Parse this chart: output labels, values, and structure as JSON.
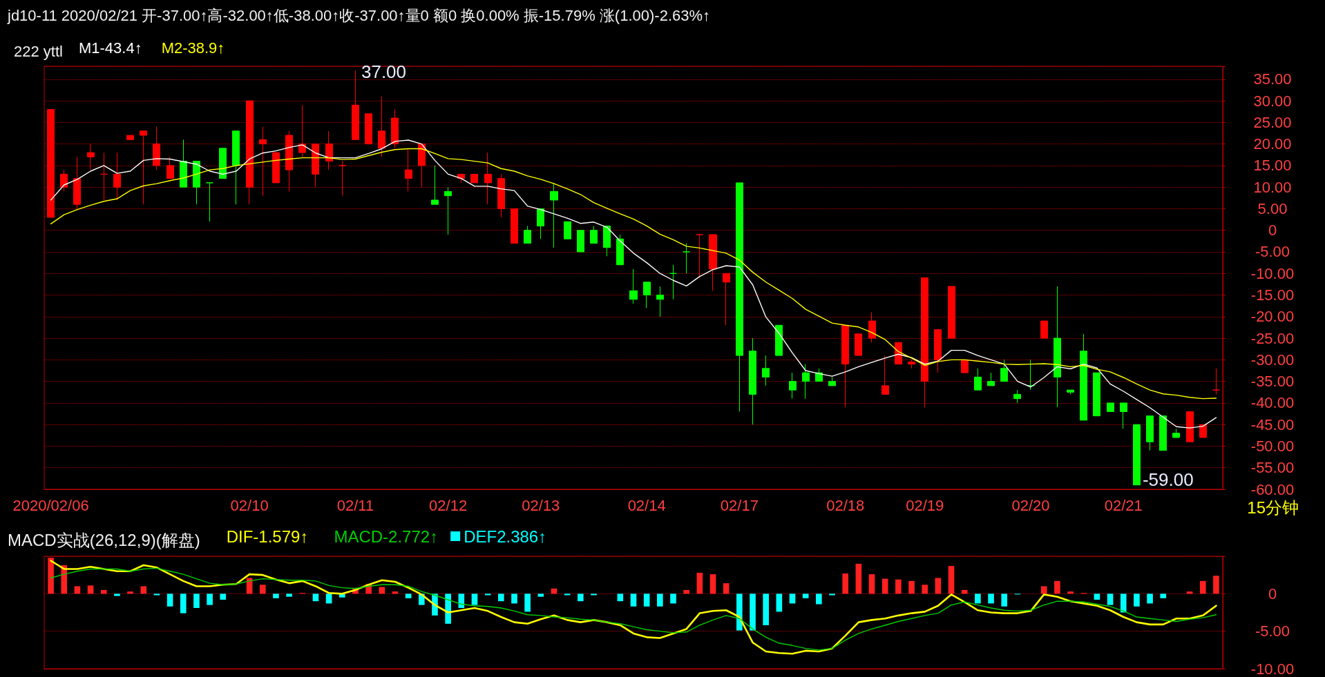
{
  "chart_data": [
    {
      "type": "candlestick",
      "title": "jd10-11 2020/02/21 开-37.00↑高-32.00↑低-38.00↑收-37.00↑量0 额0 换0.00% 振-15.79% 涨(1.00)-2.63%↑",
      "subtitle": "222 yttl",
      "categories": [
        "2020/02/06",
        null,
        null,
        null,
        null,
        null,
        null,
        null,
        null,
        null,
        null,
        null,
        null,
        null,
        null,
        "02/10",
        null,
        null,
        null,
        null,
        null,
        null,
        null,
        "02/11",
        null,
        null,
        null,
        null,
        null,
        null,
        "02/12",
        null,
        null,
        null,
        null,
        null,
        null,
        "02/13",
        null,
        null,
        null,
        null,
        null,
        null,
        null,
        "02/14",
        null,
        null,
        null,
        null,
        null,
        null,
        "02/17",
        null,
        null,
        null,
        null,
        null,
        null,
        null,
        "02/18",
        null,
        null,
        null,
        null,
        null,
        "02/19",
        null,
        null,
        null,
        null,
        null,
        null,
        null,
        "02/20",
        null,
        null,
        null,
        null,
        null,
        null,
        "02/21",
        null,
        null,
        null,
        null,
        null,
        null,
        null
      ],
      "ohlc": [
        [
          3,
          28,
          3,
          28
        ],
        [
          10,
          14,
          9,
          13
        ],
        [
          6,
          17,
          5,
          12
        ],
        [
          17,
          20,
          14,
          18
        ],
        [
          13,
          18,
          7,
          13
        ],
        [
          10,
          18,
          7,
          13
        ],
        [
          21,
          22,
          21,
          22
        ],
        [
          22,
          23,
          6,
          23
        ],
        [
          15,
          24,
          14,
          20
        ],
        [
          12,
          17,
          12,
          15
        ],
        [
          16,
          21,
          10,
          10
        ],
        [
          16,
          16,
          6,
          10
        ],
        [
          11,
          11,
          2,
          11
        ],
        [
          19,
          19,
          12,
          12
        ],
        [
          23,
          23,
          6,
          15
        ],
        [
          10,
          30,
          6,
          30
        ],
        [
          20,
          24,
          8,
          21
        ],
        [
          11,
          18,
          11,
          18
        ],
        [
          14,
          23,
          9,
          22
        ],
        [
          18,
          29,
          17,
          20
        ],
        [
          13,
          20,
          10,
          20
        ],
        [
          16,
          23,
          14,
          20
        ],
        [
          15,
          16,
          8,
          15
        ],
        [
          21,
          37,
          21,
          29
        ],
        [
          20,
          27,
          20,
          27
        ],
        [
          19,
          31,
          17,
          23
        ],
        [
          20,
          28,
          19,
          26
        ],
        [
          12,
          19,
          9,
          14
        ],
        [
          15,
          20,
          10,
          20
        ],
        [
          7,
          15,
          6,
          6
        ],
        [
          9,
          10,
          -1,
          8
        ],
        [
          12,
          13,
          11,
          13
        ],
        [
          11,
          13,
          11,
          13
        ],
        [
          11,
          18,
          6,
          13
        ],
        [
          5,
          13,
          3,
          12
        ],
        [
          -3,
          5,
          -3,
          5
        ],
        [
          0,
          1,
          -3,
          -3
        ],
        [
          5,
          5,
          -2,
          1
        ],
        [
          9,
          11,
          -4,
          7
        ],
        [
          2,
          2,
          -2,
          -2
        ],
        [
          0,
          0,
          -5,
          -5
        ],
        [
          0,
          1,
          -3,
          -3
        ],
        [
          1,
          1,
          -6,
          -4
        ],
        [
          -2,
          -1,
          -8,
          -8
        ],
        [
          -14,
          -9,
          -17,
          -16
        ],
        [
          -12,
          -12,
          -18,
          -15
        ],
        [
          -15,
          -13,
          -20,
          -16
        ],
        [
          -10,
          -8,
          -16,
          -10
        ],
        [
          -5,
          -3,
          -10,
          -5
        ],
        [
          -1,
          -1,
          -11,
          -1
        ],
        [
          -9,
          -1,
          -14,
          -1
        ],
        [
          -12,
          -10,
          -22,
          -10
        ],
        [
          11,
          11,
          -42,
          -29
        ],
        [
          -28,
          -25,
          -45,
          -38
        ],
        [
          -32,
          -29,
          -36,
          -34
        ],
        [
          -22,
          -22,
          -29,
          -29
        ],
        [
          -35,
          -33,
          -39,
          -37
        ],
        [
          -33,
          -31,
          -39,
          -35
        ],
        [
          -33,
          -32,
          -35,
          -35
        ],
        [
          -35,
          -34,
          -36,
          -36
        ],
        [
          -31,
          -22,
          -41,
          -22
        ],
        [
          -29,
          -24,
          -29,
          -24
        ],
        [
          -25,
          -19,
          -26,
          -21
        ],
        [
          -38,
          -29,
          -38,
          -36
        ],
        [
          -31,
          -26,
          -31,
          -26
        ],
        [
          -31,
          -30,
          -32,
          -30.5
        ],
        [
          -35,
          -11,
          -41,
          -11
        ],
        [
          -30,
          -23,
          -33,
          -23
        ],
        [
          -25,
          -13,
          -25,
          -13
        ],
        [
          -33,
          -30,
          -33,
          -30
        ],
        [
          -34,
          -32,
          -37,
          -37
        ],
        [
          -35,
          -33,
          -36,
          -36
        ],
        [
          -32,
          -30,
          -35,
          -35
        ],
        [
          -38,
          -37,
          -40,
          -39
        ],
        [
          -36,
          -30,
          -37,
          -36
        ],
        [
          -25,
          -21,
          -25,
          -21
        ],
        [
          -25,
          -13,
          -41,
          -34
        ],
        [
          -37.5,
          -37,
          -38,
          -37
        ],
        [
          -28,
          -24,
          -44,
          -44
        ],
        [
          -33,
          -33,
          -43,
          -43
        ],
        [
          -40,
          -40,
          -42,
          -42
        ],
        [
          -40,
          -40,
          -46,
          -42
        ],
        [
          -45,
          -45,
          -59,
          -59
        ],
        [
          -43,
          -43,
          -51,
          -49
        ],
        [
          -43,
          -43,
          -51,
          -51
        ],
        [
          -47,
          -46,
          -48,
          -48
        ],
        [
          -49,
          -42,
          -49,
          -42
        ],
        [
          -48,
          -45,
          -48,
          -45
        ],
        [
          -37,
          -32,
          -38,
          -37
        ]
      ],
      "colors": [
        "#ff0000",
        "#ff0000",
        "#ff0000",
        "#ff0000",
        "#ff0000",
        "#ff0000",
        "#ff0000",
        "#ff0000",
        "#ff0000",
        "#ff0000",
        "#00ff00",
        "#00ff00",
        "#00ff00",
        "#00ff00",
        "#00ff00",
        "#ff0000",
        "#ff0000",
        "#ff0000",
        "#ff0000",
        "#ff0000",
        "#ff0000",
        "#ff0000",
        "#ff0000",
        "#ff0000",
        "#ff0000",
        "#ff0000",
        "#ff0000",
        "#ff0000",
        "#ff0000",
        "#00ff00",
        "#00ff00",
        "#ff0000",
        "#ff0000",
        "#ff0000",
        "#ff0000",
        "#ff0000",
        "#00ff00",
        "#00ff00",
        "#00ff00",
        "#00ff00",
        "#00ff00",
        "#00ff00",
        "#00ff00",
        "#00ff00",
        "#00ff00",
        "#00ff00",
        "#00ff00",
        "#00ff00",
        "#00ff00",
        "#ff0000",
        "#ff0000",
        "#ff0000",
        "#00ff00",
        "#00ff00",
        "#00ff00",
        "#00ff00",
        "#00ff00",
        "#00ff00",
        "#00ff00",
        "#00ff00",
        "#ff0000",
        "#ff0000",
        "#ff0000",
        "#ff0000",
        "#ff0000",
        "#ff0000",
        "#ff0000",
        "#ff0000",
        "#ff0000",
        "#ff0000",
        "#00ff00",
        "#00ff00",
        "#00ff00",
        "#00ff00",
        "#00ff00",
        "#ff0000",
        "#00ff00",
        "#00ff00",
        "#00ff00",
        "#00ff00",
        "#00ff00",
        "#00ff00",
        "#00ff00",
        "#00ff00",
        "#00ff00",
        "#00ff00",
        "#ff0000",
        "#ff0000",
        "#ff0000"
      ],
      "series": [
        {
          "name": "M1-43.4↑",
          "type": "line",
          "color": "#ffffff",
          "values": [
            7,
            10.5,
            11.8,
            13.7,
            15,
            13.2,
            13.7,
            16.2,
            16.6,
            16.5,
            15.9,
            15.3,
            13.7,
            13,
            13.7,
            16.5,
            17.9,
            18.4,
            19.2,
            19.8,
            17.9,
            16.8,
            16.8,
            16.8,
            17.8,
            18.9,
            20.6,
            20.9,
            20,
            16.2,
            13,
            12,
            10.2,
            10.2,
            9.6,
            9.2,
            5.6,
            4.8,
            3.8,
            2.8,
            1.6,
            1.9,
            0.7,
            -2.5,
            -5.3,
            -7.5,
            -10,
            -11.6,
            -12.9,
            -10.7,
            -9.1,
            -8.2,
            -8.5,
            -12.6,
            -20.1,
            -23.9,
            -28.4,
            -32.5,
            -33.2,
            -33.8,
            -32.8,
            -31.6,
            -30.6,
            -29.6,
            -28.7,
            -29.5,
            -31,
            -30.3,
            -27.8,
            -27.8,
            -29,
            -30,
            -31,
            -35,
            -36.3,
            -34.1,
            -31.6,
            -32.1,
            -31,
            -31.9,
            -35.6,
            -37.3,
            -39.2,
            -41.1,
            -43.3,
            -45.5,
            -45.8,
            -45.4,
            -43.4
          ]
        },
        {
          "name": "M2-38.9↑",
          "type": "line",
          "color": "#ffff00",
          "values": [
            1.5,
            3.6,
            4.8,
            5.8,
            6.7,
            7.3,
            9.2,
            10.3,
            10.8,
            11.5,
            12.1,
            13,
            14,
            14.3,
            15,
            15.4,
            15.8,
            16.2,
            16.5,
            16.8,
            16.8,
            16.8,
            16.4,
            16.5,
            17.3,
            18.1,
            18.7,
            18.9,
            18.9,
            17.8,
            16.6,
            16.4,
            16,
            15.6,
            14.3,
            13.7,
            12.6,
            11.8,
            10.8,
            9.6,
            8.3,
            6.4,
            5.1,
            3.8,
            2.6,
            1,
            -0.9,
            -2.2,
            -3.7,
            -4.1,
            -4.7,
            -5.3,
            -6.9,
            -9.7,
            -12,
            -13.9,
            -15.8,
            -18.3,
            -19.9,
            -21.5,
            -22,
            -22.4,
            -23.7,
            -25.3,
            -28.1,
            -29.6,
            -31.3,
            -30.4,
            -30,
            -30,
            -30.3,
            -30.6,
            -31,
            -31.1,
            -31,
            -30.9,
            -31.1,
            -31.6,
            -31.3,
            -32.2,
            -32.8,
            -34.1,
            -35.6,
            -37,
            -37.9,
            -38.2,
            -38.7,
            -39,
            -38.9
          ]
        }
      ],
      "annotations": [
        "37.00",
        "-59.00",
        "15分钟"
      ],
      "ylim": [
        -60,
        38
      ],
      "yticks": [
        {
          "value": -60,
          "label": "-60.00"
        },
        {
          "value": -55,
          "label": "-55.00"
        },
        {
          "value": -50,
          "label": "-50.00"
        },
        {
          "value": -45,
          "label": "-45.00"
        },
        {
          "value": -40,
          "label": "-40.00"
        },
        {
          "value": -35,
          "label": "-35.00"
        },
        {
          "value": -30,
          "label": "-30.00"
        },
        {
          "value": -25,
          "label": "-25.00"
        },
        {
          "value": -20,
          "label": "-20.00"
        },
        {
          "value": -15,
          "label": "-15.00"
        },
        {
          "value": -10,
          "label": "-10.00"
        },
        {
          "value": -5,
          "label": "-5.00"
        },
        0,
        {
          "value": 5,
          "label": "5.00"
        },
        {
          "value": 10,
          "label": "10.00"
        },
        {
          "value": 15,
          "label": "15.00"
        },
        {
          "value": 20,
          "label": "20.00"
        },
        {
          "value": 25,
          "label": "25.00"
        },
        {
          "value": 30,
          "label": "30.00"
        },
        {
          "value": 35,
          "label": "35.00"
        }
      ],
      "grid": "y",
      "legend": "top left",
      "marker": "none",
      "line_style": "solid"
    },
    {
      "type": "bar",
      "title": "MACD实战(26,12,9)(解盘)",
      "categories": [
        null,
        null,
        null,
        null,
        null,
        null,
        null,
        null,
        null,
        null,
        null,
        null,
        null,
        null,
        null,
        null,
        null,
        null,
        null,
        null,
        null,
        null,
        null,
        null,
        null,
        null,
        null,
        null,
        null,
        null,
        null,
        null,
        null,
        null,
        null,
        null,
        null,
        null,
        null,
        null,
        null,
        null,
        null,
        null,
        null,
        null,
        null,
        null,
        null,
        null,
        null,
        null,
        null,
        null,
        null,
        null,
        null,
        null,
        null,
        null,
        null,
        null,
        null,
        null,
        null,
        null,
        null,
        null,
        null,
        null,
        null,
        null,
        null,
        null,
        null,
        null,
        null,
        null,
        null,
        null,
        null,
        null,
        null,
        null,
        null,
        null,
        null,
        null,
        null
      ],
      "series": [
        {
          "name": "DIF-1.579↑",
          "type": "line",
          "color": "#ffff00",
          "values": [
            4.4,
            3.3,
            3.3,
            3.6,
            3.3,
            3,
            3,
            3.8,
            3.5,
            2.6,
            1.7,
            1,
            1,
            1.2,
            1.3,
            2.6,
            2.5,
            1.9,
            1.4,
            1.7,
            1,
            0.1,
            0,
            0.5,
            1.2,
            1.8,
            1.6,
            0.8,
            -0.1,
            -1.5,
            -2.5,
            -2.2,
            -1.9,
            -2.3,
            -3.1,
            -3.8,
            -4,
            -3.4,
            -2.9,
            -3.5,
            -3.8,
            -3.5,
            -3.8,
            -4.2,
            -5.3,
            -5.8,
            -5.9,
            -5.3,
            -4.7,
            -2.6,
            -2.3,
            -2.2,
            -3.1,
            -6.5,
            -7.7,
            -7.9,
            -8,
            -7.6,
            -7.7,
            -7.3,
            -5.6,
            -3.8,
            -3.5,
            -3.3,
            -2.9,
            -2.6,
            -2.4,
            -1.6,
            -0.1,
            -1.1,
            -2.2,
            -2.5,
            -2.6,
            -2.6,
            -2.3,
            -0.1,
            -0.4,
            -1,
            -1.3,
            -1.6,
            -2.2,
            -3.1,
            -3.8,
            -4.1,
            -4.1,
            -3.3,
            -3.3,
            -2.9,
            -1.6
          ]
        },
        {
          "name": "MACD-2.772↑",
          "type": "line",
          "color": "#00d000",
          "values": [
            2.1,
            2.6,
            3,
            3.3,
            3.3,
            3.3,
            3,
            3.3,
            3.4,
            3,
            2.6,
            2,
            1.4,
            1.2,
            1.3,
            1.7,
            2,
            1.9,
            1.8,
            1.8,
            1.7,
            1.1,
            0.8,
            0.7,
            1,
            1.2,
            1.2,
            1,
            0.3,
            -0.2,
            -0.8,
            -1.4,
            -1.6,
            -1.7,
            -1.9,
            -2.3,
            -2.8,
            -2.9,
            -3.1,
            -3.2,
            -3.4,
            -3.5,
            -3.8,
            -4,
            -4.4,
            -4.8,
            -5,
            -5.2,
            -5.1,
            -4.2,
            -3.5,
            -2.9,
            -3.3,
            -4.7,
            -5.8,
            -6.6,
            -6.9,
            -7.3,
            -7.5,
            -7.3,
            -6.2,
            -5.3,
            -4.7,
            -4.2,
            -3.7,
            -3.3,
            -2.9,
            -2.6,
            -1.5,
            -1.1,
            -1.5,
            -1.9,
            -2.2,
            -2.3,
            -2.2,
            -1.5,
            -1,
            -1,
            -1.1,
            -1.4,
            -1.7,
            -2.3,
            -3.1,
            -3.3,
            -3.5,
            -3.7,
            -3.4,
            -3.2,
            -2.8
          ]
        },
        {
          "name": "DEF2.386↑",
          "color": "#00ffff",
          "values": [
            4.8,
            3.8,
            1,
            1.1,
            0.5,
            -0.3,
            0.3,
            1,
            -0.2,
            -1.7,
            -2.6,
            -1.9,
            -1.5,
            -0.8,
            0,
            2.1,
            1.2,
            -0.6,
            -0.4,
            0.1,
            -1,
            -1.3,
            -0.5,
            0.8,
            1.3,
            0.9,
            0.3,
            -0.6,
            -1.5,
            -2.9,
            -4,
            -1.9,
            -1.5,
            -0.2,
            -1,
            -1.3,
            -2.4,
            -0.4,
            0.7,
            -0.2,
            -1,
            -0.2,
            0,
            -1,
            -1.7,
            -1.7,
            -1.7,
            -1.3,
            0.5,
            2.8,
            2.6,
            1.4,
            -4.9,
            -4.9,
            -4.2,
            -2.4,
            -1.3,
            -0.6,
            -1.4,
            -0.2,
            2.7,
            4,
            2.6,
            2,
            1.9,
            1.7,
            1.2,
            2.1,
            3.7,
            0.5,
            -1.3,
            -1.3,
            -1.7,
            -0.1,
            0,
            1,
            1.7,
            0.3,
            0.1,
            -0.8,
            -1.5,
            -2.5,
            -1.7,
            -1.3,
            -0.6,
            0,
            0.3,
            1.7,
            2.4
          ],
          "colors": [
            "#ff2020",
            "#ff2020",
            "#ff2020",
            "#ff2020",
            "#ff2020",
            "#00ffff",
            "#ff2020",
            "#ff2020",
            "#00ffff",
            "#00ffff",
            "#00ffff",
            "#00ffff",
            "#00ffff",
            "#00ffff",
            "#ff2020",
            "#ff2020",
            "#ff2020",
            "#00ffff",
            "#00ffff",
            "#ff2020",
            "#00ffff",
            "#00ffff",
            "#00ffff",
            "#ff2020",
            "#ff2020",
            "#ff2020",
            "#ff2020",
            "#00ffff",
            "#00ffff",
            "#00ffff",
            "#00ffff",
            "#00ffff",
            "#00ffff",
            "#00ffff",
            "#00ffff",
            "#00ffff",
            "#00ffff",
            "#00ffff",
            "#ff2020",
            "#00ffff",
            "#00ffff",
            "#00ffff",
            "#ff2020",
            "#00ffff",
            "#00ffff",
            "#00ffff",
            "#00ffff",
            "#00ffff",
            "#ff2020",
            "#ff2020",
            "#ff2020",
            "#ff2020",
            "#00ffff",
            "#00ffff",
            "#00ffff",
            "#00ffff",
            "#00ffff",
            "#00ffff",
            "#00ffff",
            "#00ffff",
            "#ff2020",
            "#ff2020",
            "#ff2020",
            "#ff2020",
            "#ff2020",
            "#ff2020",
            "#ff2020",
            "#ff2020",
            "#ff2020",
            "#ff2020",
            "#00ffff",
            "#00ffff",
            "#00ffff",
            "#00ffff",
            "#ff2020",
            "#ff2020",
            "#ff2020",
            "#ff2020",
            "#ff2020",
            "#00ffff",
            "#00ffff",
            "#00ffff",
            "#00ffff",
            "#00ffff",
            "#00ffff",
            "#ff2020",
            "#ff2020",
            "#ff2020",
            "#ff2020"
          ]
        }
      ],
      "ylim": [
        -10,
        5
      ],
      "yticks": [
        {
          "value": -10,
          "label": "-10.00"
        },
        {
          "value": -5,
          "label": "-5.00"
        },
        0
      ],
      "grid": "y",
      "legend": "top left",
      "marker": "none",
      "line_style": "solid",
      "tick_labels": "y"
    }
  ]
}
